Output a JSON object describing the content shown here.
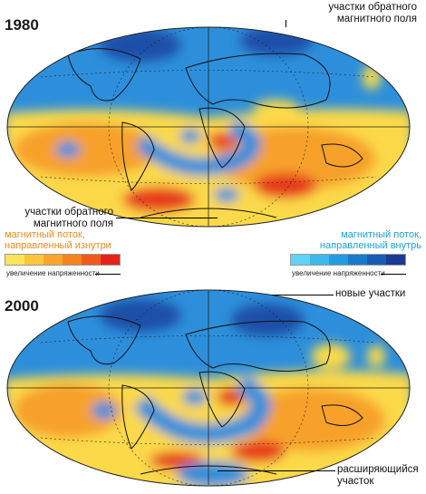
{
  "panel_1980": {
    "year": "1980",
    "label_top": [
      "участки обратного",
      "магнитного поля"
    ],
    "label_bottom": [
      "участки обратного",
      "магнитного поля"
    ]
  },
  "panel_2000": {
    "year": "2000",
    "label_new": "новые участки",
    "label_expanding": [
      "расширяющийся",
      "участок"
    ]
  },
  "legend": {
    "warm_title": [
      "магнитный поток,",
      "направленный изнутри"
    ],
    "cool_title": [
      "магнитный поток,",
      "направленный внутрь"
    ],
    "warm_caption": "увеличение напряженности",
    "cool_caption": "увеличение напряженности",
    "warm_colors": [
      "#fde55a",
      "#fcc63c",
      "#f9a52b",
      "#f5831f",
      "#ef5a1c",
      "#e3231b"
    ],
    "cool_colors": [
      "#5fd3f3",
      "#3fb8ec",
      "#249be0",
      "#1a7bcc",
      "#1a5cb4",
      "#1a3a96"
    ]
  },
  "colors": {
    "ocean_blue": "#2d8fdb",
    "deep_blue": "#1c4fa8",
    "yellow": "#fbd94a",
    "orange": "#f7a12c",
    "red": "#e63a1e"
  }
}
